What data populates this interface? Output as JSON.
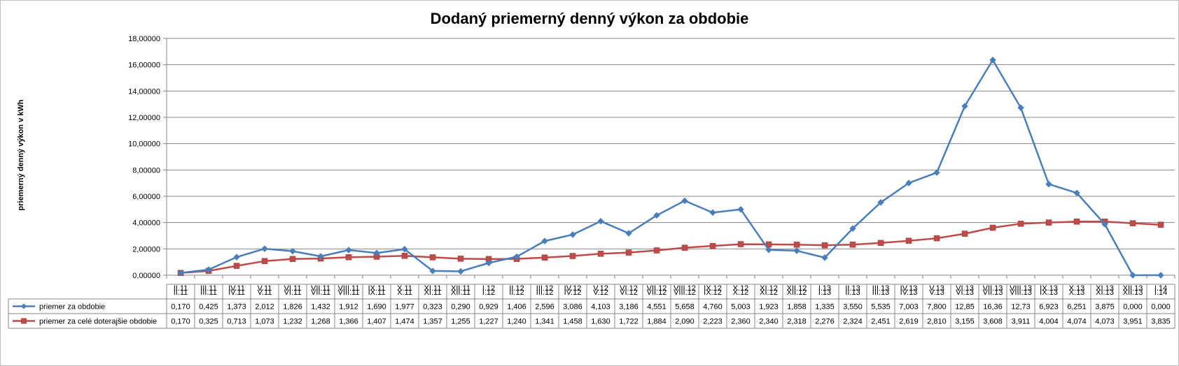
{
  "chart_data": {
    "type": "line",
    "title": "Dodaný priemerný denný výkon za obdobie",
    "ylabel": "priemerný denný výkon  v kWh",
    "xlabel": "",
    "ylim": [
      0,
      18
    ],
    "yticks": [
      "0,00000",
      "2,00000",
      "4,00000",
      "6,00000",
      "8,00000",
      "10,00000",
      "12,00000",
      "14,00000",
      "16,00000",
      "18,00000"
    ],
    "grid": "horizontal",
    "legend": "data table (left)",
    "categories": [
      "II.11",
      "III.11",
      "IV.11",
      "V.11",
      "VI.11",
      "VII.11",
      "VIII.11",
      "IX.11",
      "X.11",
      "XI.11",
      "XII.11",
      "I.12",
      "II.12",
      "III.12",
      "IV.12",
      "V.12",
      "VI.12",
      "VII.12",
      "VIII.12",
      "IX.12",
      "X.12",
      "XI.12",
      "XII.12",
      "I.13",
      "II.13",
      "III.13",
      "IV.13",
      "V.13",
      "VI.13",
      "VII.13",
      "VIII.13",
      "IX.13",
      "X.13",
      "XI.13",
      "XII.13",
      "I.14"
    ],
    "series": [
      {
        "name": "priemer za obdobie",
        "color": "#4a7ebb",
        "marker": "diamond",
        "values": [
          0.17,
          0.425,
          1.373,
          2.012,
          1.826,
          1.432,
          1.912,
          1.69,
          1.977,
          0.323,
          0.29,
          0.929,
          1.406,
          2.596,
          3.086,
          4.103,
          3.186,
          4.551,
          5.658,
          4.76,
          5.003,
          1.923,
          1.858,
          1.335,
          3.55,
          5.535,
          7.003,
          7.8,
          12.85,
          16.36,
          12.73,
          6.923,
          6.251,
          3.875,
          0.0,
          0.0
        ],
        "labels": [
          "0,170",
          "0,425",
          "1,373",
          "2,012",
          "1,826",
          "1,432",
          "1,912",
          "1,690",
          "1,977",
          "0,323",
          "0,290",
          "0,929",
          "1,406",
          "2,596",
          "3,086",
          "4,103",
          "3,186",
          "4,551",
          "5,658",
          "4,760",
          "5,003",
          "1,923",
          "1,858",
          "1,335",
          "3,550",
          "5,535",
          "7,003",
          "7,800",
          "12,85",
          "16,36",
          "12,73",
          "6,923",
          "6,251",
          "3,875",
          "0,000",
          "0,000"
        ]
      },
      {
        "name": "priemer za celé doterajšie obdobie",
        "color": "#be4b48",
        "marker": "square",
        "values": [
          0.17,
          0.325,
          0.713,
          1.073,
          1.232,
          1.268,
          1.366,
          1.407,
          1.474,
          1.357,
          1.255,
          1.227,
          1.24,
          1.341,
          1.458,
          1.63,
          1.722,
          1.884,
          2.09,
          2.223,
          2.36,
          2.34,
          2.318,
          2.276,
          2.324,
          2.451,
          2.619,
          2.81,
          3.155,
          3.608,
          3.911,
          4.004,
          4.074,
          4.073,
          3.951,
          3.835
        ],
        "labels": [
          "0,170",
          "0,325",
          "0,713",
          "1,073",
          "1,232",
          "1,268",
          "1,366",
          "1,407",
          "1,474",
          "1,357",
          "1,255",
          "1,227",
          "1,240",
          "1,341",
          "1,458",
          "1,630",
          "1,722",
          "1,884",
          "2,090",
          "2,223",
          "2,360",
          "2,340",
          "2,318",
          "2,276",
          "2,324",
          "2,451",
          "2,619",
          "2,810",
          "3,155",
          "3,608",
          "3,911",
          "4,004",
          "4,074",
          "4,073",
          "3,951",
          "3,835"
        ]
      }
    ]
  }
}
